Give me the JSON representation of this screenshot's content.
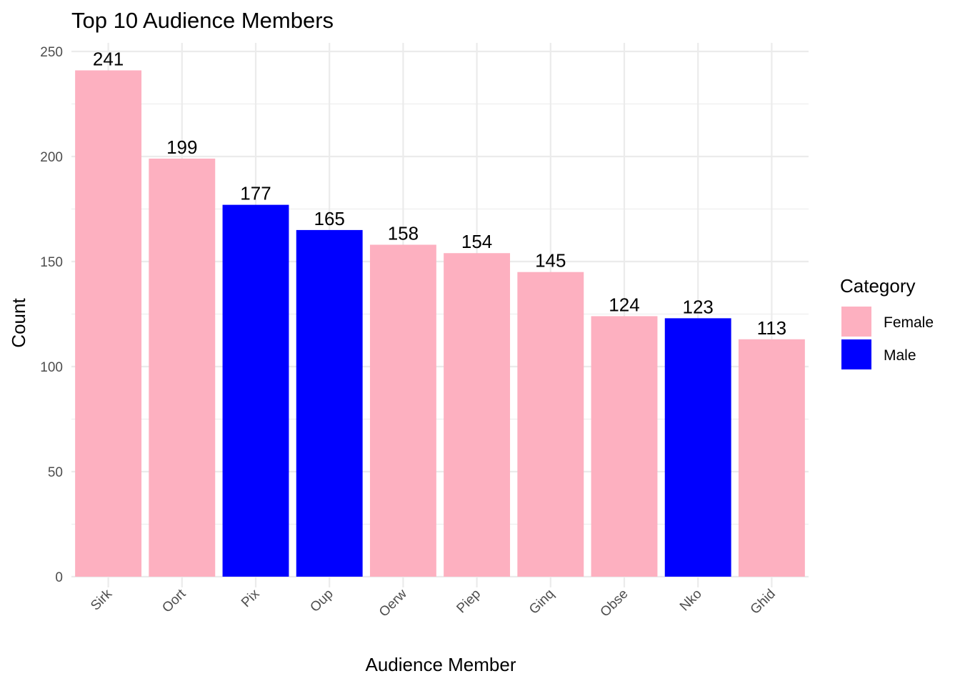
{
  "chart_data": {
    "type": "bar",
    "title": "Top 10 Audience Members",
    "xlabel": "Audience Member",
    "ylabel": "Count",
    "categories": [
      "Sirk",
      "Oort",
      "Pix",
      "Oup",
      "Oerw",
      "Piep",
      "Ginq",
      "Obse",
      "Nko",
      "Ghid"
    ],
    "values": [
      241,
      199,
      177,
      165,
      158,
      154,
      145,
      124,
      123,
      113
    ],
    "groups": [
      "Female",
      "Female",
      "Male",
      "Male",
      "Female",
      "Female",
      "Female",
      "Female",
      "Male",
      "Female"
    ],
    "ylim": [
      0,
      250
    ],
    "yticks": [
      0,
      50,
      100,
      150,
      200,
      250
    ],
    "grid": true,
    "legend": {
      "title": "Category",
      "position": "right",
      "entries": [
        {
          "label": "Female",
          "color": "#FDB0C0"
        },
        {
          "label": "Male",
          "color": "#0000FF"
        }
      ]
    }
  }
}
